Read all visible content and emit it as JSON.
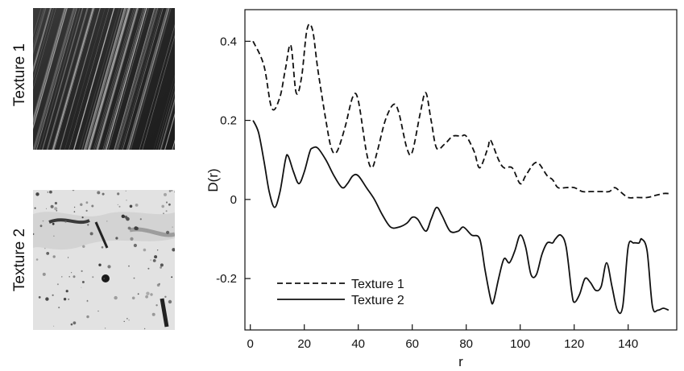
{
  "panels": [
    {
      "label": "Texture 1",
      "image": "texture-1-image"
    },
    {
      "label": "Texture 2",
      "image": "texture-2-image"
    }
  ],
  "chart_data": {
    "type": "line",
    "title": "",
    "xlabel": "r",
    "ylabel": "D(r)",
    "xlim": [
      -2,
      158
    ],
    "ylim": [
      -0.33,
      0.48
    ],
    "xticks": [
      0,
      20,
      40,
      60,
      80,
      100,
      120,
      140
    ],
    "xtick_labels": [
      "0",
      "20",
      "40",
      "60",
      "80",
      "100",
      "120",
      "140"
    ],
    "yticks": [
      -0.2,
      0,
      0.2,
      0.4
    ],
    "ytick_labels": [
      "-0.2",
      "0",
      "0.2",
      "0.4"
    ],
    "grid": false,
    "legend_position": "bottom-left",
    "series": [
      {
        "name": "Texture 1",
        "style": "dashed",
        "color": "#111111",
        "x": [
          1,
          5,
          8,
          11,
          13,
          15,
          17,
          19,
          21,
          23,
          25,
          28,
          30,
          32,
          35,
          38,
          40,
          43,
          45,
          47,
          50,
          53,
          55,
          58,
          60,
          63,
          65,
          67,
          69,
          72,
          75,
          78,
          80,
          83,
          85,
          88,
          89,
          92,
          94,
          97,
          100,
          102,
          105,
          107,
          110,
          112,
          114,
          117,
          120,
          123,
          126,
          130,
          133,
          135,
          137,
          140,
          143,
          147,
          150,
          153,
          155
        ],
        "y": [
          0.4,
          0.34,
          0.23,
          0.26,
          0.33,
          0.39,
          0.27,
          0.31,
          0.43,
          0.43,
          0.33,
          0.2,
          0.13,
          0.12,
          0.18,
          0.26,
          0.25,
          0.12,
          0.08,
          0.12,
          0.2,
          0.24,
          0.22,
          0.13,
          0.12,
          0.22,
          0.27,
          0.2,
          0.13,
          0.14,
          0.16,
          0.16,
          0.16,
          0.12,
          0.08,
          0.13,
          0.15,
          0.1,
          0.08,
          0.08,
          0.04,
          0.06,
          0.09,
          0.09,
          0.06,
          0.05,
          0.03,
          0.03,
          0.03,
          0.02,
          0.02,
          0.02,
          0.02,
          0.03,
          0.02,
          0.005,
          0.005,
          0.005,
          0.01,
          0.015,
          0.015
        ]
      },
      {
        "name": "Texture 2",
        "style": "solid",
        "color": "#111111",
        "x": [
          1,
          3,
          5,
          7,
          9,
          11,
          13,
          14,
          16,
          18,
          20,
          22,
          23,
          25,
          28,
          31,
          34,
          36,
          38,
          40,
          43,
          46,
          49,
          52,
          55,
          58,
          60,
          62,
          65,
          67,
          69,
          71,
          74,
          77,
          79,
          82,
          85,
          87,
          89,
          90,
          92,
          94,
          96,
          98,
          100,
          102,
          104,
          106,
          108,
          110,
          112,
          113,
          115,
          117,
          119,
          120,
          122,
          124,
          126,
          128,
          130,
          132,
          134,
          136,
          138,
          140,
          142,
          144,
          145,
          147,
          149,
          151,
          153,
          155
        ],
        "y": [
          0.2,
          0.17,
          0.1,
          0.02,
          -0.02,
          0.02,
          0.1,
          0.11,
          0.07,
          0.04,
          0.07,
          0.12,
          0.13,
          0.13,
          0.1,
          0.06,
          0.03,
          0.04,
          0.06,
          0.06,
          0.03,
          0.0,
          -0.04,
          -0.07,
          -0.07,
          -0.06,
          -0.045,
          -0.05,
          -0.08,
          -0.05,
          -0.02,
          -0.04,
          -0.08,
          -0.08,
          -0.07,
          -0.09,
          -0.1,
          -0.18,
          -0.25,
          -0.26,
          -0.2,
          -0.15,
          -0.16,
          -0.13,
          -0.09,
          -0.12,
          -0.19,
          -0.19,
          -0.14,
          -0.11,
          -0.11,
          -0.1,
          -0.09,
          -0.12,
          -0.23,
          -0.26,
          -0.24,
          -0.2,
          -0.21,
          -0.23,
          -0.22,
          -0.16,
          -0.22,
          -0.28,
          -0.27,
          -0.12,
          -0.11,
          -0.11,
          -0.1,
          -0.13,
          -0.27,
          -0.28,
          -0.275,
          -0.28
        ]
      }
    ]
  }
}
